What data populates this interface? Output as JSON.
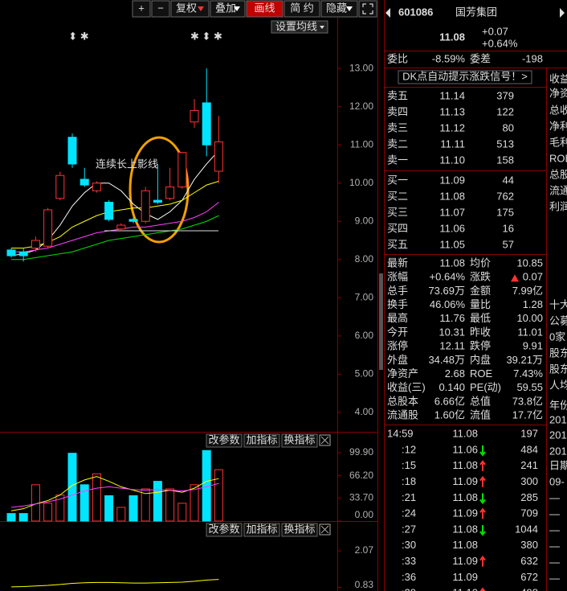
{
  "toolbar": {
    "buttons": [
      "+",
      "−",
      "复权",
      "叠加",
      "画线",
      "简 约",
      "隐藏"
    ]
  },
  "chart_data": [
    {
      "type": "candlestick",
      "up_color": "#ff3232",
      "down_color": "#00e4ff",
      "open": [
        8.25,
        8.2,
        8.3,
        8.35,
        9.6,
        11.2,
        10.1,
        9.8,
        9.5,
        8.8,
        9.05,
        9.0,
        9.55,
        9.6,
        9.9,
        11.6,
        12.1,
        10.31
      ],
      "high": [
        8.3,
        8.3,
        8.6,
        9.35,
        10.3,
        11.3,
        10.4,
        10.05,
        9.55,
        8.95,
        9.1,
        9.9,
        10.5,
        10.4,
        10.8,
        12.2,
        13.0,
        11.76
      ],
      "low": [
        8.05,
        7.95,
        8.2,
        8.3,
        9.55,
        10.4,
        9.9,
        9.75,
        9.0,
        8.75,
        8.95,
        8.95,
        9.45,
        9.55,
        9.85,
        11.45,
        10.7,
        10.0
      ],
      "close": [
        8.1,
        8.1,
        8.5,
        9.3,
        10.2,
        10.5,
        9.95,
        10.0,
        9.05,
        8.9,
        9.0,
        9.8,
        9.5,
        9.9,
        10.8,
        11.9,
        11.0,
        11.08
      ],
      "overlays": [
        {
          "color": "#ffffff",
          "values": [
            8.1,
            8.15,
            8.25,
            8.5,
            8.9,
            9.4,
            9.75,
            10.0,
            10.0,
            9.8,
            9.45,
            9.2,
            9.05,
            9.25,
            9.55,
            10.1,
            10.5,
            10.85
          ]
        },
        {
          "color": "#ffff00",
          "values": [
            8.3,
            8.3,
            8.35,
            8.45,
            8.6,
            8.85,
            9.0,
            9.15,
            9.25,
            9.3,
            9.35,
            9.35,
            9.4,
            9.45,
            9.55,
            9.75,
            9.95,
            10.05
          ]
        },
        {
          "color": "#ff40ff",
          "values": [
            8.2,
            8.2,
            8.25,
            8.3,
            8.4,
            8.5,
            8.6,
            8.7,
            8.75,
            8.8,
            8.85,
            8.85,
            8.9,
            8.95,
            9.0,
            9.1,
            9.25,
            9.5
          ]
        },
        {
          "color": "#00e000",
          "values": [
            8.0,
            8.0,
            8.05,
            8.1,
            8.15,
            8.2,
            8.3,
            8.4,
            8.5,
            8.55,
            8.6,
            8.65,
            8.7,
            8.75,
            8.8,
            8.9,
            9.0,
            9.15
          ]
        }
      ],
      "ylim": [
        3.64,
        13.95
      ],
      "yticks": [
        {
          "value": 13,
          "label": "13.00"
        },
        {
          "value": 12,
          "label": "12.00"
        },
        {
          "value": 11,
          "label": "11.00"
        },
        {
          "value": 10,
          "label": "10.00"
        },
        {
          "value": 9,
          "label": "9.00"
        },
        {
          "value": 8,
          "label": "8.00"
        },
        {
          "value": 7,
          "label": "7.00"
        },
        {
          "value": 6,
          "label": "6.00"
        },
        {
          "value": 5,
          "label": "5.00"
        },
        {
          "value": 4,
          "label": "4.00"
        }
      ],
      "ma_button": "设置均线",
      "annotation": "连续长上影线",
      "markers": [
        "⬍ ✱",
        "✱ ⬍ ✱"
      ]
    },
    {
      "type": "bar",
      "values": [
        11,
        11,
        53,
        26,
        38,
        99,
        53,
        69,
        37,
        20,
        37,
        47,
        58,
        47,
        26,
        53,
        103,
        75
      ],
      "overlays": [
        {
          "color": "#ffff00",
          "values": [
            15,
            18,
            25,
            30,
            38,
            52,
            60,
            65,
            58,
            50,
            45,
            40,
            42,
            45,
            42,
            48,
            58,
            62
          ]
        },
        {
          "color": "#ff40ff",
          "values": [
            20,
            22,
            25,
            28,
            32,
            38,
            44,
            48,
            50,
            48,
            46,
            45,
            46,
            45,
            44,
            46,
            50,
            55
          ]
        }
      ],
      "ylim": [
        0,
        108
      ],
      "yticks": [
        {
          "value": 99.9,
          "label": "99.90"
        },
        {
          "value": 66.2,
          "label": "66.20"
        },
        {
          "value": 33.7,
          "label": "33.70"
        },
        {
          "value": 0,
          "label": "0.00"
        }
      ]
    },
    {
      "type": "line",
      "overlays": [
        {
          "color": "#ffff00",
          "values": [
            0.85,
            0.86,
            0.88,
            0.9,
            0.93,
            0.97,
            0.99,
            1.0,
            1.0,
            0.99,
            0.98,
            0.98,
            0.99,
            1.0,
            1.01,
            1.04,
            1.08,
            1.1
          ]
        }
      ],
      "ylim": [
        0.71,
        2.48
      ],
      "yticks": [
        {
          "value": 2.07,
          "label": "2.07"
        },
        {
          "value": 0.83,
          "label": "0.83"
        }
      ]
    }
  ],
  "panel_buttons": [
    "改参数",
    "加指标",
    "换指标"
  ],
  "quote": {
    "code": "601086",
    "name": "国芳集团",
    "price": "11.08",
    "change": "+0.07",
    "change_pct": "+0.64%",
    "weibi_label": "委比",
    "weibi": "-8.59%",
    "weicha_label": "委差",
    "weicha": "-198",
    "signal_link": "DK点自动提示涨跌信号！>",
    "asks": [
      [
        "卖五",
        "11.14",
        "379"
      ],
      [
        "卖四",
        "11.13",
        "122"
      ],
      [
        "卖三",
        "11.12",
        "80"
      ],
      [
        "卖二",
        "11.11",
        "513"
      ],
      [
        "卖一",
        "11.10",
        "158"
      ]
    ],
    "bids": [
      [
        "买一",
        "11.09",
        "44"
      ],
      [
        "买二",
        "11.08",
        "762"
      ],
      [
        "买三",
        "11.07",
        "175"
      ],
      [
        "买四",
        "11.06",
        "16"
      ],
      [
        "买五",
        "11.05",
        "57"
      ]
    ],
    "stats": [
      [
        "最新",
        "11.08",
        "均价",
        "10.85"
      ],
      [
        "涨幅",
        "+0.64%",
        "涨跌",
        "0.07"
      ],
      [
        "总手",
        "73.69万",
        "金额",
        "7.99亿"
      ],
      [
        "换手",
        "46.06%",
        "量比",
        "1.28"
      ],
      [
        "最高",
        "11.76",
        "最低",
        "10.00"
      ],
      [
        "今开",
        "10.31",
        "昨收",
        "11.01"
      ],
      [
        "涨停",
        "12.11",
        "跌停",
        "9.91"
      ],
      [
        "外盘",
        "34.48万",
        "内盘",
        "39.21万"
      ],
      [
        "净资产",
        "2.68",
        "ROE",
        "7.43%"
      ],
      [
        "收益(三)",
        "0.140",
        "PE(动)",
        "59.55"
      ],
      [
        "总股本",
        "6.66亿",
        "总值",
        "73.8亿"
      ],
      [
        "流通股",
        "1.60亿",
        "流值",
        "17.7亿"
      ]
    ],
    "stat_colors": [
      [
        "#ff3232",
        "#00e000"
      ],
      [
        "#ff3232",
        "#ff3232"
      ],
      [
        "#ffffff",
        "#00e4ff"
      ],
      [
        "#ffffff",
        "#ffffff"
      ],
      [
        "#ff3232",
        "#00e000"
      ],
      [
        "#00e000",
        "#ffffff"
      ],
      [
        "#ff3232",
        "#00e000"
      ],
      [
        "#ff3232",
        "#00e000"
      ],
      [
        "#ffffff",
        "#ffffff"
      ],
      [
        "#ffffff",
        "#ffffff"
      ],
      [
        "#ffffff",
        "#ffffff"
      ],
      [
        "#ffffff",
        "#ffffff"
      ]
    ],
    "ticks_header": [
      "14:59",
      "11.08",
      "197"
    ],
    "ticks": [
      {
        "time": ":12",
        "price": "11.06",
        "volume": "484",
        "arrow": "down",
        "volume_color": "#00e000"
      },
      {
        "time": ":15",
        "price": "11.08",
        "volume": "241",
        "arrow": "up",
        "volume_color": "#ff3232"
      },
      {
        "time": ":18",
        "price": "11.09",
        "volume": "300",
        "arrow": "up",
        "volume_color": "#ff3232"
      },
      {
        "time": ":21",
        "price": "11.08",
        "volume": "285",
        "arrow": "down",
        "volume_color": "#00e000"
      },
      {
        "time": ":24",
        "price": "11.09",
        "volume": "709",
        "arrow": "up",
        "volume_color": "#ff3232"
      },
      {
        "time": ":27",
        "price": "11.08",
        "volume": "1044",
        "arrow": "down",
        "volume_color": "#00e000"
      },
      {
        "time": ":30",
        "price": "11.08",
        "volume": "380",
        "arrow": null,
        "volume_color": "#00e000"
      },
      {
        "time": ":33",
        "price": "11.09",
        "volume": "632",
        "arrow": "up",
        "volume_color": "#ff3232"
      },
      {
        "time": ":36",
        "price": "11.09",
        "volume": "672",
        "arrow": null,
        "volume_color": "#00e000"
      },
      {
        "time": ":39",
        "price": "11.10",
        "volume": "498",
        "arrow": "up",
        "volume_color": "#ff3232"
      }
    ]
  },
  "side_column": [
    "收益",
    "净资",
    "总收",
    "净利",
    "毛利",
    "ROE",
    "总股",
    "流通",
    "利润",
    "十大",
    "公募",
    "0家",
    "股东",
    "股东",
    "人均",
    "年份",
    "201",
    "201",
    "201",
    "日期",
    "09-",
    "—",
    "—",
    "—",
    "—",
    "—",
    "—"
  ]
}
